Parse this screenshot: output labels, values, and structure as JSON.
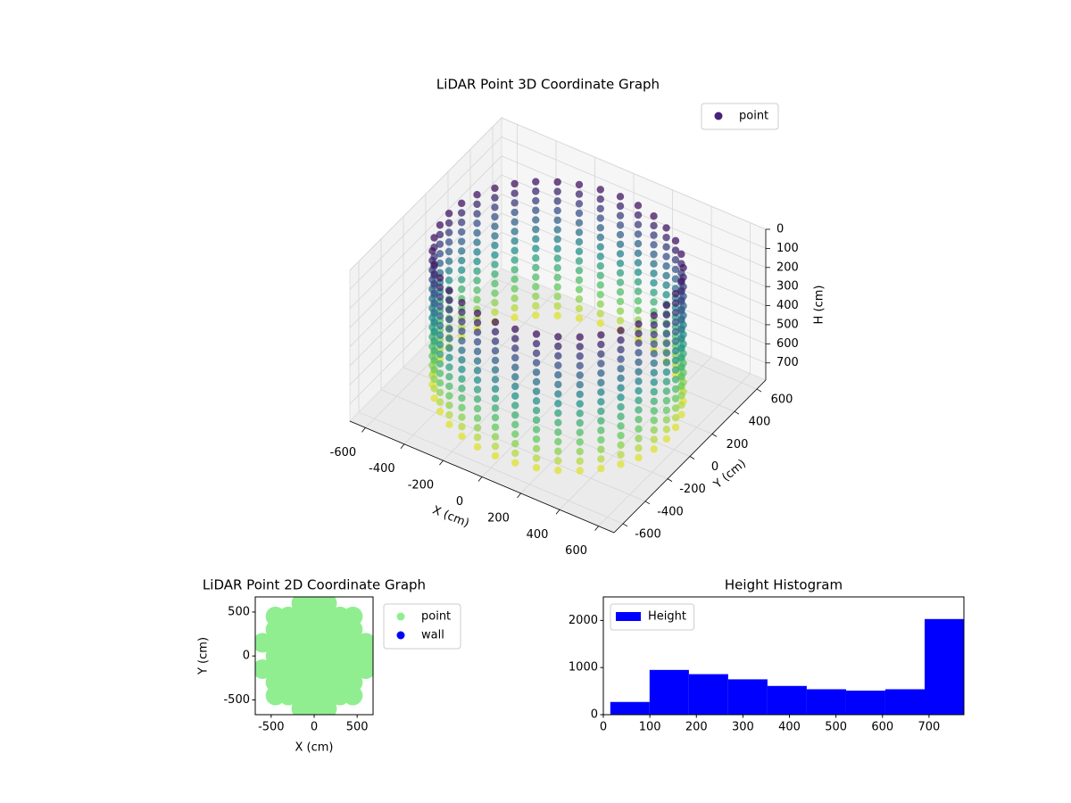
{
  "chart_data": [
    {
      "type": "scatter3d",
      "title": "LiDAR Point 3D Coordinate Graph",
      "xlabel": "X (cm)",
      "ylabel": "Y (cm)",
      "zlabel": "H (cm)",
      "xlim": [
        -680,
        680
      ],
      "ylim": [
        -680,
        680
      ],
      "zlim": [
        0,
        790
      ],
      "z_inverted": true,
      "xticks": [
        -600,
        -400,
        -200,
        0,
        200,
        400,
        600
      ],
      "yticks": [
        -600,
        -400,
        -200,
        0,
        200,
        400,
        600
      ],
      "zticks": [
        0,
        100,
        200,
        300,
        400,
        500,
        600,
        700
      ],
      "grid": true,
      "legend": "upper right",
      "colormap": [
        "#440154",
        "#3b528b",
        "#21918c",
        "#5ec962",
        "#fde725"
      ],
      "series": [
        {
          "name": "point",
          "color": "#46237a",
          "x": [
            560,
            551,
            526,
            485,
            429,
            360,
            280,
            192,
            97,
            0,
            -97,
            -192,
            -280,
            -360,
            -429,
            -485,
            -526,
            -551,
            -560,
            -551,
            -526,
            -485,
            -429,
            -360,
            -280,
            -192,
            -97,
            0,
            97,
            192,
            280,
            360,
            429,
            485,
            526,
            551
          ],
          "y": [
            0,
            97,
            192,
            280,
            360,
            429,
            485,
            526,
            551,
            560,
            551,
            526,
            485,
            429,
            360,
            280,
            192,
            97,
            0,
            -97,
            -192,
            -280,
            -360,
            -429,
            -485,
            -526,
            -551,
            -560,
            -551,
            -526,
            -485,
            -429,
            -360,
            -280,
            -192,
            -97
          ],
          "h": [
            50,
            100,
            150,
            200,
            250,
            300,
            350,
            400,
            450,
            500,
            550,
            600,
            650,
            700,
            750
          ]
        }
      ]
    },
    {
      "type": "scatter",
      "title": "LiDAR Point 2D Coordinate Graph",
      "xlabel": "X (cm)",
      "ylabel": "Y (cm)",
      "xlim": [
        -685,
        685
      ],
      "ylim": [
        -668,
        672
      ],
      "xticks": [
        -500,
        0,
        500
      ],
      "yticks": [
        -500,
        0,
        500
      ],
      "legend": "outside right",
      "series": [
        {
          "name": "point",
          "color": "#90ee90",
          "x": [
            -150,
            0,
            150,
            -450,
            -300,
            -150,
            0,
            150,
            300,
            450,
            -450,
            -300,
            -150,
            0,
            150,
            300,
            450,
            -600,
            -450,
            -300,
            -150,
            0,
            150,
            300,
            450,
            600,
            -450,
            -300,
            -150,
            0,
            150,
            300,
            450,
            600,
            -600,
            -450,
            -300,
            -150,
            0,
            150,
            300,
            450,
            600,
            -450,
            -300,
            -150,
            0,
            150,
            300,
            450,
            -450,
            -300,
            -150,
            0,
            150,
            300,
            450,
            -150,
            0,
            150
          ],
          "y": [
            -600,
            -600,
            -600,
            -450,
            -450,
            -450,
            -450,
            -450,
            -450,
            -450,
            -300,
            -300,
            -300,
            -300,
            -300,
            -300,
            -300,
            -150,
            -150,
            -150,
            -150,
            -150,
            -150,
            -150,
            -150,
            -150,
            0,
            0,
            0,
            0,
            0,
            0,
            0,
            0,
            150,
            150,
            150,
            150,
            150,
            150,
            150,
            150,
            150,
            300,
            300,
            300,
            300,
            300,
            300,
            300,
            450,
            450,
            450,
            450,
            450,
            450,
            450,
            600,
            600,
            600
          ]
        },
        {
          "name": "wall",
          "color": "#0000ff",
          "x": [],
          "y": []
        }
      ]
    },
    {
      "type": "histogram",
      "title": "Height Histogram",
      "bins": [
        15,
        99.4,
        183.9,
        268.3,
        352.8,
        437.2,
        521.7,
        606.1,
        690.6,
        775
      ],
      "xlim": [
        0,
        775
      ],
      "ylim": [
        0,
        2500
      ],
      "xticks": [
        0,
        100,
        200,
        300,
        400,
        500,
        600,
        700
      ],
      "yticks": [
        0,
        1000,
        2000
      ],
      "legend": "upper left",
      "series": [
        {
          "name": "Height",
          "color": "#0000ff",
          "values": [
            270,
            950,
            860,
            750,
            610,
            540,
            510,
            540,
            2030
          ]
        }
      ]
    }
  ]
}
